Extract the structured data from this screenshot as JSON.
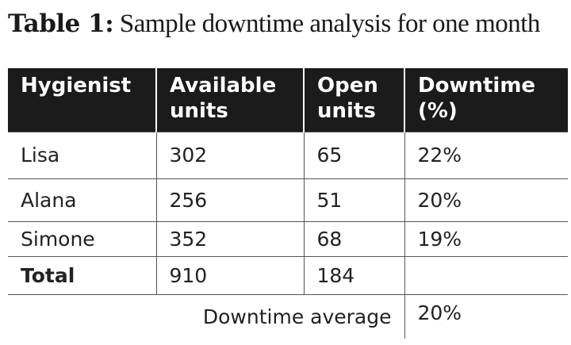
{
  "caption": {
    "label": "Table 1:",
    "text": "Sample downtime analysis for one month"
  },
  "table": {
    "headers": [
      {
        "line1": "Hygienist",
        "line2": ""
      },
      {
        "line1": "Available",
        "line2": "units"
      },
      {
        "line1": "Open",
        "line2": "units"
      },
      {
        "line1": "Downtime",
        "line2": "(%)"
      }
    ],
    "rows": [
      {
        "hygienist": "Lisa",
        "available": "302",
        "open": "65",
        "downtime": "22%"
      },
      {
        "hygienist": "Alana",
        "available": "256",
        "open": "51",
        "downtime": "20%"
      },
      {
        "hygienist": "Simone",
        "available": "352",
        "open": "68",
        "downtime": "19%"
      }
    ],
    "total": {
      "label": "Total",
      "available": "910",
      "open": "184",
      "downtime": ""
    },
    "average": {
      "label": "Downtime average",
      "value": "20%"
    }
  }
}
